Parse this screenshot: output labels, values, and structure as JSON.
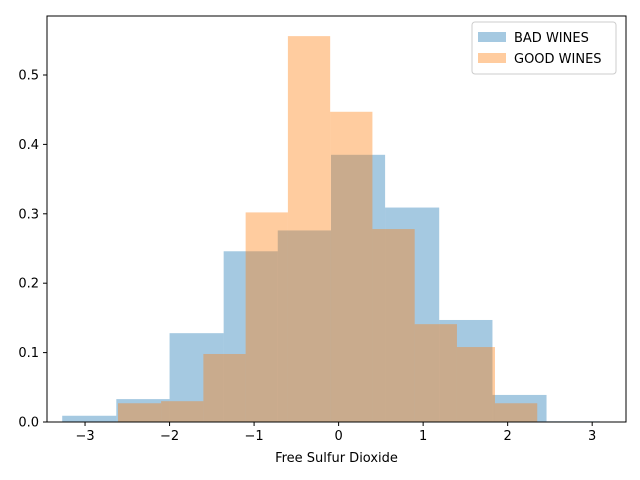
{
  "chart_data": {
    "type": "histogram",
    "xlabel": "Free Sulfur Dioxide",
    "ylabel": "",
    "title": "",
    "xlim": [
      -3.45,
      3.4
    ],
    "ylim": [
      0,
      0.585
    ],
    "xticks": [
      -3,
      -2,
      -1,
      0,
      1,
      2,
      3
    ],
    "xtick_labels": [
      "−3",
      "−2",
      "−1",
      "0",
      "1",
      "2",
      "3"
    ],
    "yticks": [
      0.0,
      0.1,
      0.2,
      0.3,
      0.4,
      0.5
    ],
    "ytick_labels": [
      "0.0",
      "0.1",
      "0.2",
      "0.3",
      "0.4",
      "0.5"
    ],
    "grid": false,
    "legend_position": "top-right",
    "series": [
      {
        "name": "BAD WINES",
        "color": "#1f77b4",
        "alpha": 0.4,
        "bin_edges": [
          -3.27,
          -2.63,
          -2.0,
          -1.36,
          -0.72,
          -0.09,
          0.55,
          1.19,
          1.82,
          2.46,
          3.09
        ],
        "values": [
          0.009,
          0.033,
          0.128,
          0.246,
          0.276,
          0.385,
          0.309,
          0.147,
          0.039,
          0.001
        ]
      },
      {
        "name": "GOOD WINES",
        "color": "#ff7f0e",
        "alpha": 0.4,
        "bin_edges": [
          -2.61,
          -2.1,
          -1.6,
          -1.1,
          -0.6,
          -0.1,
          0.4,
          0.9,
          1.4,
          1.85,
          2.35
        ],
        "values": [
          0.027,
          0.03,
          0.098,
          0.302,
          0.556,
          0.447,
          0.278,
          0.141,
          0.108,
          0.027
        ]
      }
    ]
  }
}
